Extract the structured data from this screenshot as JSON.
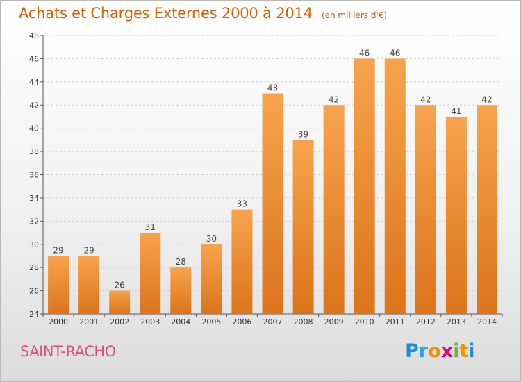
{
  "header": {
    "title": "Achats et Charges Externes 2000 à 2014",
    "unit": "(en milliers d'€)"
  },
  "footer": {
    "place": "SAINT-RACHO",
    "logo": {
      "text": "Proxiti",
      "letters": [
        {
          "ch": "P",
          "color": "#1f8fd6"
        },
        {
          "ch": "r",
          "color": "#2aa2e0"
        },
        {
          "ch": "o",
          "color": "#f39200"
        },
        {
          "ch": "x",
          "color": "#e5007d"
        },
        {
          "ch": "i",
          "color": "#74b530"
        },
        {
          "ch": "t",
          "color": "#f39200"
        },
        {
          "ch": "i",
          "color": "#1f8fd6"
        }
      ]
    }
  },
  "colors": {
    "bar_light": "#f7a34d",
    "bar_dark": "#dc741a",
    "title": "#d85c00",
    "place": "#d94e7a"
  },
  "chart_data": {
    "type": "bar",
    "title": "Achats et Charges Externes 2000 à 2014",
    "subtitle": "(en milliers d'€)",
    "categories": [
      "2000",
      "2001",
      "2002",
      "2003",
      "2004",
      "2005",
      "2006",
      "2007",
      "2008",
      "2009",
      "2010",
      "2011",
      "2012",
      "2013",
      "2014"
    ],
    "values": [
      29,
      29,
      26,
      31,
      28,
      30,
      33,
      43,
      39,
      42,
      46,
      46,
      42,
      41,
      42
    ],
    "ylim": [
      24,
      48
    ],
    "yticks": [
      24,
      26,
      28,
      30,
      32,
      34,
      36,
      38,
      40,
      42,
      44,
      46,
      48
    ],
    "grid": true,
    "data_labels": true
  }
}
